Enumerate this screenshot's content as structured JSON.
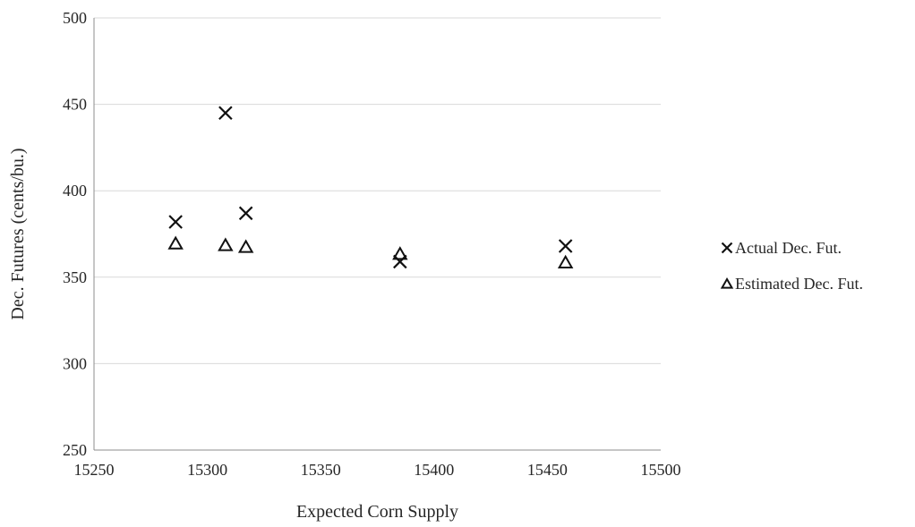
{
  "chart_data": {
    "type": "scatter",
    "title": "",
    "xlabel": "Expected Corn Supply",
    "ylabel": "Dec. Futures (cents/bu.)",
    "xlim": [
      15250,
      15500
    ],
    "ylim": [
      250,
      500
    ],
    "xticks": [
      15250,
      15300,
      15350,
      15400,
      15450,
      15500
    ],
    "yticks": [
      250,
      300,
      350,
      400,
      450,
      500
    ],
    "grid": "horizontal",
    "legend_position": "right",
    "series": [
      {
        "name": "Actual Dec. Fut.",
        "marker": "x",
        "color": "#111111",
        "points": [
          {
            "x": 15286,
            "y": 382
          },
          {
            "x": 15308,
            "y": 445
          },
          {
            "x": 15317,
            "y": 387
          },
          {
            "x": 15385,
            "y": 359
          },
          {
            "x": 15458,
            "y": 368
          }
        ]
      },
      {
        "name": "Estimated Dec. Fut.",
        "marker": "triangle",
        "color": "#111111",
        "points": [
          {
            "x": 15286,
            "y": 369
          },
          {
            "x": 15308,
            "y": 368
          },
          {
            "x": 15317,
            "y": 367
          },
          {
            "x": 15385,
            "y": 363
          },
          {
            "x": 15458,
            "y": 358
          }
        ]
      }
    ]
  }
}
